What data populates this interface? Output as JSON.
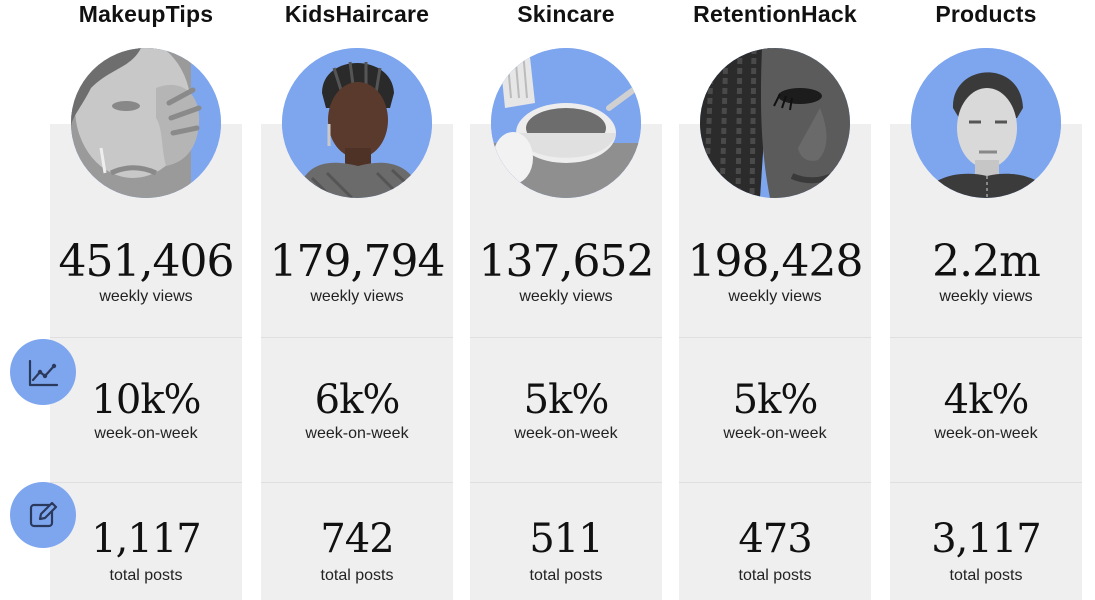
{
  "colors": {
    "accent": "#7ea6ef",
    "panel": "#f0eff0",
    "text": "#111111"
  },
  "row_icons": [
    {
      "icon": "line-chart-icon"
    },
    {
      "icon": "edit-icon"
    }
  ],
  "columns": [
    {
      "title": "MakeupTips",
      "views": "451,406",
      "views_label": "weekly views",
      "wow": "10k%",
      "wow_label": "week-on-week",
      "posts": "1,117",
      "posts_label": "total posts",
      "image": "woman-touching-nose-photo"
    },
    {
      "title": "KidsHaircare",
      "views": "179,794",
      "views_label": "weekly views",
      "wow": "6k%",
      "wow_label": "week-on-week",
      "posts": "742",
      "posts_label": "total posts",
      "image": "braided-hair-model-photo"
    },
    {
      "title": "Skincare",
      "views": "137,652",
      "views_label": "weekly views",
      "wow": "5k%",
      "wow_label": "week-on-week",
      "posts": "511",
      "posts_label": "total posts",
      "image": "skincare-bowl-brush-photo"
    },
    {
      "title": "RetentionHack",
      "views": "198,428",
      "views_label": "weekly views",
      "wow": "5k%",
      "wow_label": "week-on-week",
      "posts": "473",
      "posts_label": "total posts",
      "image": "braids-closeup-photo"
    },
    {
      "title": "Products",
      "views": "2.2m",
      "views_label": "weekly views",
      "wow": "4k%",
      "wow_label": "week-on-week",
      "posts": "3,117",
      "posts_label": "total posts",
      "image": "model-portrait-photo"
    }
  ]
}
